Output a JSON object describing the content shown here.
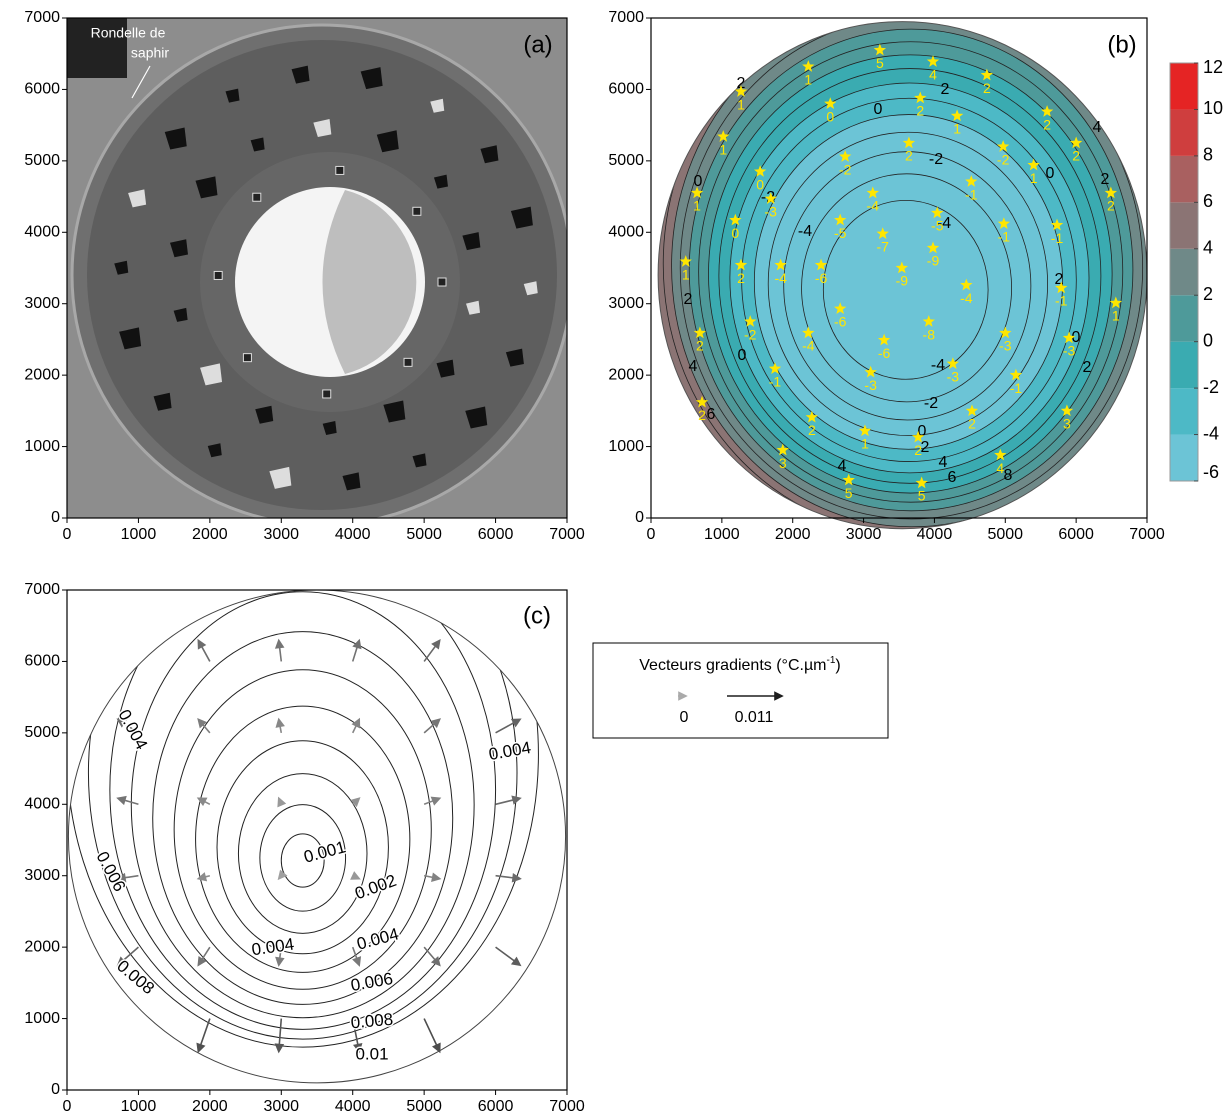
{
  "chart_data": [
    {
      "type": "image",
      "title": "(a)",
      "annotation": [
        "Rondelle de",
        "saphir"
      ],
      "xlim": [
        0,
        7000
      ],
      "ylim": [
        0,
        7000
      ],
      "xticks": [
        0,
        1000,
        2000,
        3000,
        4000,
        5000,
        6000,
        7000
      ],
      "yticks": [
        0,
        1000,
        2000,
        3000,
        4000,
        5000,
        6000,
        7000
      ]
    },
    {
      "type": "contour",
      "title": "(b)",
      "xlim": [
        0,
        7000
      ],
      "ylim": [
        0,
        7000
      ],
      "xticks": [
        0,
        1000,
        2000,
        3000,
        4000,
        5000,
        6000,
        7000
      ],
      "yticks": [
        0,
        1000,
        2000,
        3000,
        4000,
        5000,
        6000,
        7000
      ],
      "contour_levels": [
        -8,
        -7,
        -6,
        -5,
        -4,
        -3,
        -2,
        -1,
        0,
        1,
        2,
        3,
        4,
        5,
        6,
        7,
        8
      ],
      "contour_labels": [
        2,
        0,
        2,
        -2,
        4,
        2,
        0,
        0,
        -2,
        -4,
        -4,
        2,
        2,
        0,
        2,
        0,
        4,
        -4,
        -2,
        0,
        2,
        4,
        6,
        8,
        4,
        6
      ],
      "marker_color": "#ffe600",
      "points": {
        "x": [
          3230,
          3980,
          4740,
          2220,
          1270,
          2530,
          3800,
          4320,
          5590,
          6000,
          1020,
          1540,
          2740,
          3640,
          4970,
          5400,
          6490,
          4520,
          650,
          1190,
          1690,
          2670,
          3130,
          4040,
          3270,
          3980,
          3540,
          4980,
          5730,
          490,
          1270,
          1830,
          2400,
          4450,
          5790,
          6560,
          2670,
          690,
          1400,
          2220,
          3920,
          3290,
          5000,
          5900,
          1750,
          3100,
          4260,
          5150,
          720,
          2270,
          3020,
          3770,
          4530,
          5870,
          1860,
          2790,
          3820,
          4930
        ],
        "y": [
          6550,
          6390,
          6200,
          6320,
          5970,
          5800,
          5880,
          5630,
          5690,
          5250,
          5340,
          4850,
          5060,
          5250,
          5200,
          4940,
          4550,
          4710,
          4550,
          4170,
          4470,
          4170,
          4550,
          4270,
          3980,
          3780,
          3500,
          4120,
          4100,
          3590,
          3540,
          3540,
          3540,
          3260,
          3220,
          3010,
          2930,
          2590,
          2750,
          2590,
          2750,
          2490,
          2590,
          2520,
          2090,
          2040,
          2160,
          2000,
          1620,
          1410,
          1220,
          1130,
          1500,
          1500,
          950,
          530,
          490,
          880
        ],
        "values": [
          5,
          4,
          2,
          1,
          1,
          0,
          2,
          1,
          2,
          2,
          1,
          0,
          -2,
          2,
          -2,
          1,
          2,
          -1,
          1,
          0,
          -3,
          -5,
          -4,
          -5,
          -7,
          -9,
          -9,
          -1,
          -1,
          1,
          2,
          -4,
          -6,
          -4,
          -1,
          1,
          -6,
          2,
          -2,
          -4,
          -8,
          -6,
          -3,
          -3,
          -1,
          -3,
          -3,
          -1,
          2,
          2,
          1,
          2,
          2,
          3,
          3,
          5,
          5,
          4
        ]
      },
      "colorbar": {
        "ticks": [
          -6,
          -4,
          -2,
          0,
          2,
          4,
          6,
          8,
          10,
          12
        ],
        "colors": [
          "#6cc4d6",
          "#4db9c6",
          "#3aabb1",
          "#4e9a9a",
          "#6f8988",
          "#8b7474",
          "#a96060",
          "#cf3e3e",
          "#e52424"
        ]
      }
    },
    {
      "type": "vector",
      "title": "(c)",
      "xlim": [
        0,
        7000
      ],
      "ylim": [
        0,
        7000
      ],
      "xticks": [
        0,
        1000,
        2000,
        3000,
        4000,
        5000,
        6000,
        7000
      ],
      "yticks": [
        0,
        1000,
        2000,
        3000,
        4000,
        5000,
        6000,
        7000
      ],
      "contour_levels": [
        0.001,
        0.002,
        0.003,
        0.004,
        0.005,
        0.006,
        0.007,
        0.008,
        0.009,
        0.01,
        0.011
      ],
      "contour_labels": [
        0.004,
        0.004,
        0.006,
        0.008,
        0.001,
        0.002,
        0.004,
        0.004,
        0.006,
        0.008,
        0.01
      ],
      "vectors": {
        "x": [
          2000,
          3000,
          4000,
          5000,
          1000,
          2000,
          3000,
          4000,
          5000,
          6000,
          1000,
          2000,
          3000,
          4000,
          5000,
          6000,
          1000,
          2000,
          3000,
          4000,
          5000,
          6000,
          1000,
          2000,
          3000,
          4000,
          5000,
          6000,
          2000,
          3000,
          4000,
          5000
        ],
        "y": [
          1000,
          1000,
          1000,
          1000,
          2000,
          2000,
          2000,
          2000,
          2000,
          2000,
          3000,
          3000,
          3000,
          3000,
          3000,
          3000,
          4000,
          4000,
          4000,
          4000,
          4000,
          4000,
          5000,
          5000,
          5000,
          5000,
          5000,
          5000,
          6000,
          6000,
          6000,
          6000
        ],
        "u": [
          -0.0023,
          -0.0005,
          0.0013,
          0.0031,
          -0.0041,
          -0.0023,
          -0.0005,
          0.0013,
          0.0031,
          0.0049,
          -0.0041,
          -0.0023,
          -0.0005,
          0.0013,
          0.0031,
          0.0049,
          -0.0041,
          -0.0023,
          -0.0005,
          0.0013,
          0.0031,
          0.0049,
          -0.0041,
          -0.0023,
          -0.0005,
          0.0013,
          0.0031,
          0.0049,
          -0.0023,
          -0.0005,
          0.0013,
          0.0031
        ],
        "v": [
          -0.0066,
          -0.0066,
          -0.0066,
          -0.0066,
          -0.0036,
          -0.0036,
          -0.0036,
          -0.0036,
          -0.0036,
          -0.0036,
          -0.0006,
          -0.0006,
          -0.0006,
          -0.0006,
          -0.0006,
          -0.0006,
          0.0012,
          0.0012,
          0.0012,
          0.0012,
          0.0012,
          0.0012,
          0.0027,
          0.0027,
          0.0027,
          0.0027,
          0.0027,
          0.0027,
          0.0042,
          0.0042,
          0.0042,
          0.0042
        ]
      },
      "legend": {
        "title": [
          "Vecteurs gradients (°C.µm",
          "-1",
          ")"
        ],
        "values": [
          0,
          0.011
        ]
      }
    }
  ]
}
